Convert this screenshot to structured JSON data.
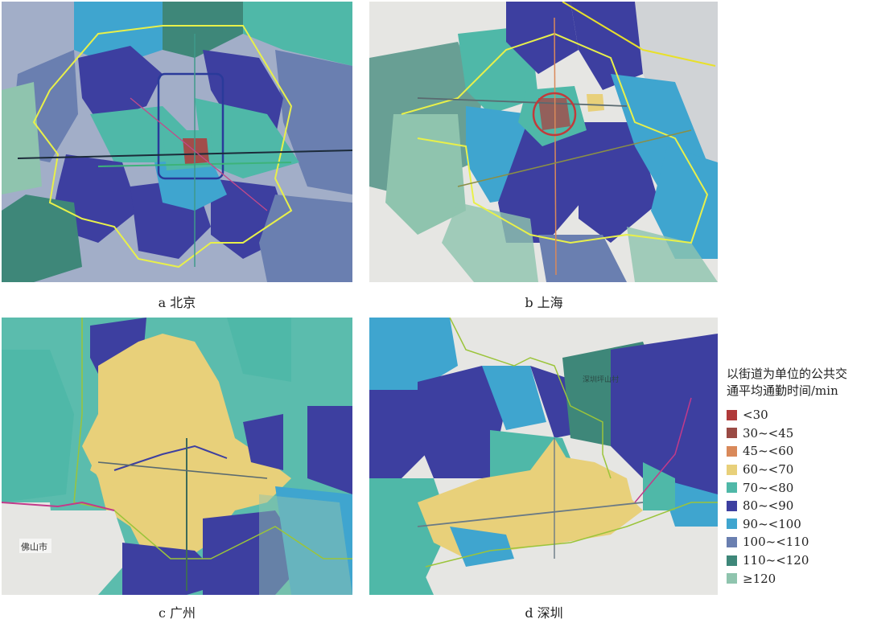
{
  "panels": [
    {
      "id": "a",
      "caption": "a 北京"
    },
    {
      "id": "b",
      "caption": "b 上海"
    },
    {
      "id": "c",
      "caption": "c 广州"
    },
    {
      "id": "d",
      "caption": "d 深圳"
    }
  ],
  "legend": {
    "title_line1": "以街道为单位的公共交",
    "title_line2": "通平均通勤时间/min",
    "items": [
      {
        "label": "<30",
        "color": "#b03a3a"
      },
      {
        "label": "30~<45",
        "color": "#9a4a44"
      },
      {
        "label": "45~<60",
        "color": "#d9895a"
      },
      {
        "label": "60~<70",
        "color": "#e8d07a"
      },
      {
        "label": "70~<80",
        "color": "#4fb8a8"
      },
      {
        "label": "80~<90",
        "color": "#3d3fa0"
      },
      {
        "label": "90~<100",
        "color": "#3fa5cf"
      },
      {
        "label": "100~<110",
        "color": "#6a7fb0"
      },
      {
        "label": "110~<120",
        "color": "#3e8779"
      },
      {
        "label": "≥120",
        "color": "#8fc4ae"
      }
    ]
  },
  "map_labels": {
    "guangzhou_city": "佛山市",
    "shenzhen_park": "深圳坪山村"
  }
}
